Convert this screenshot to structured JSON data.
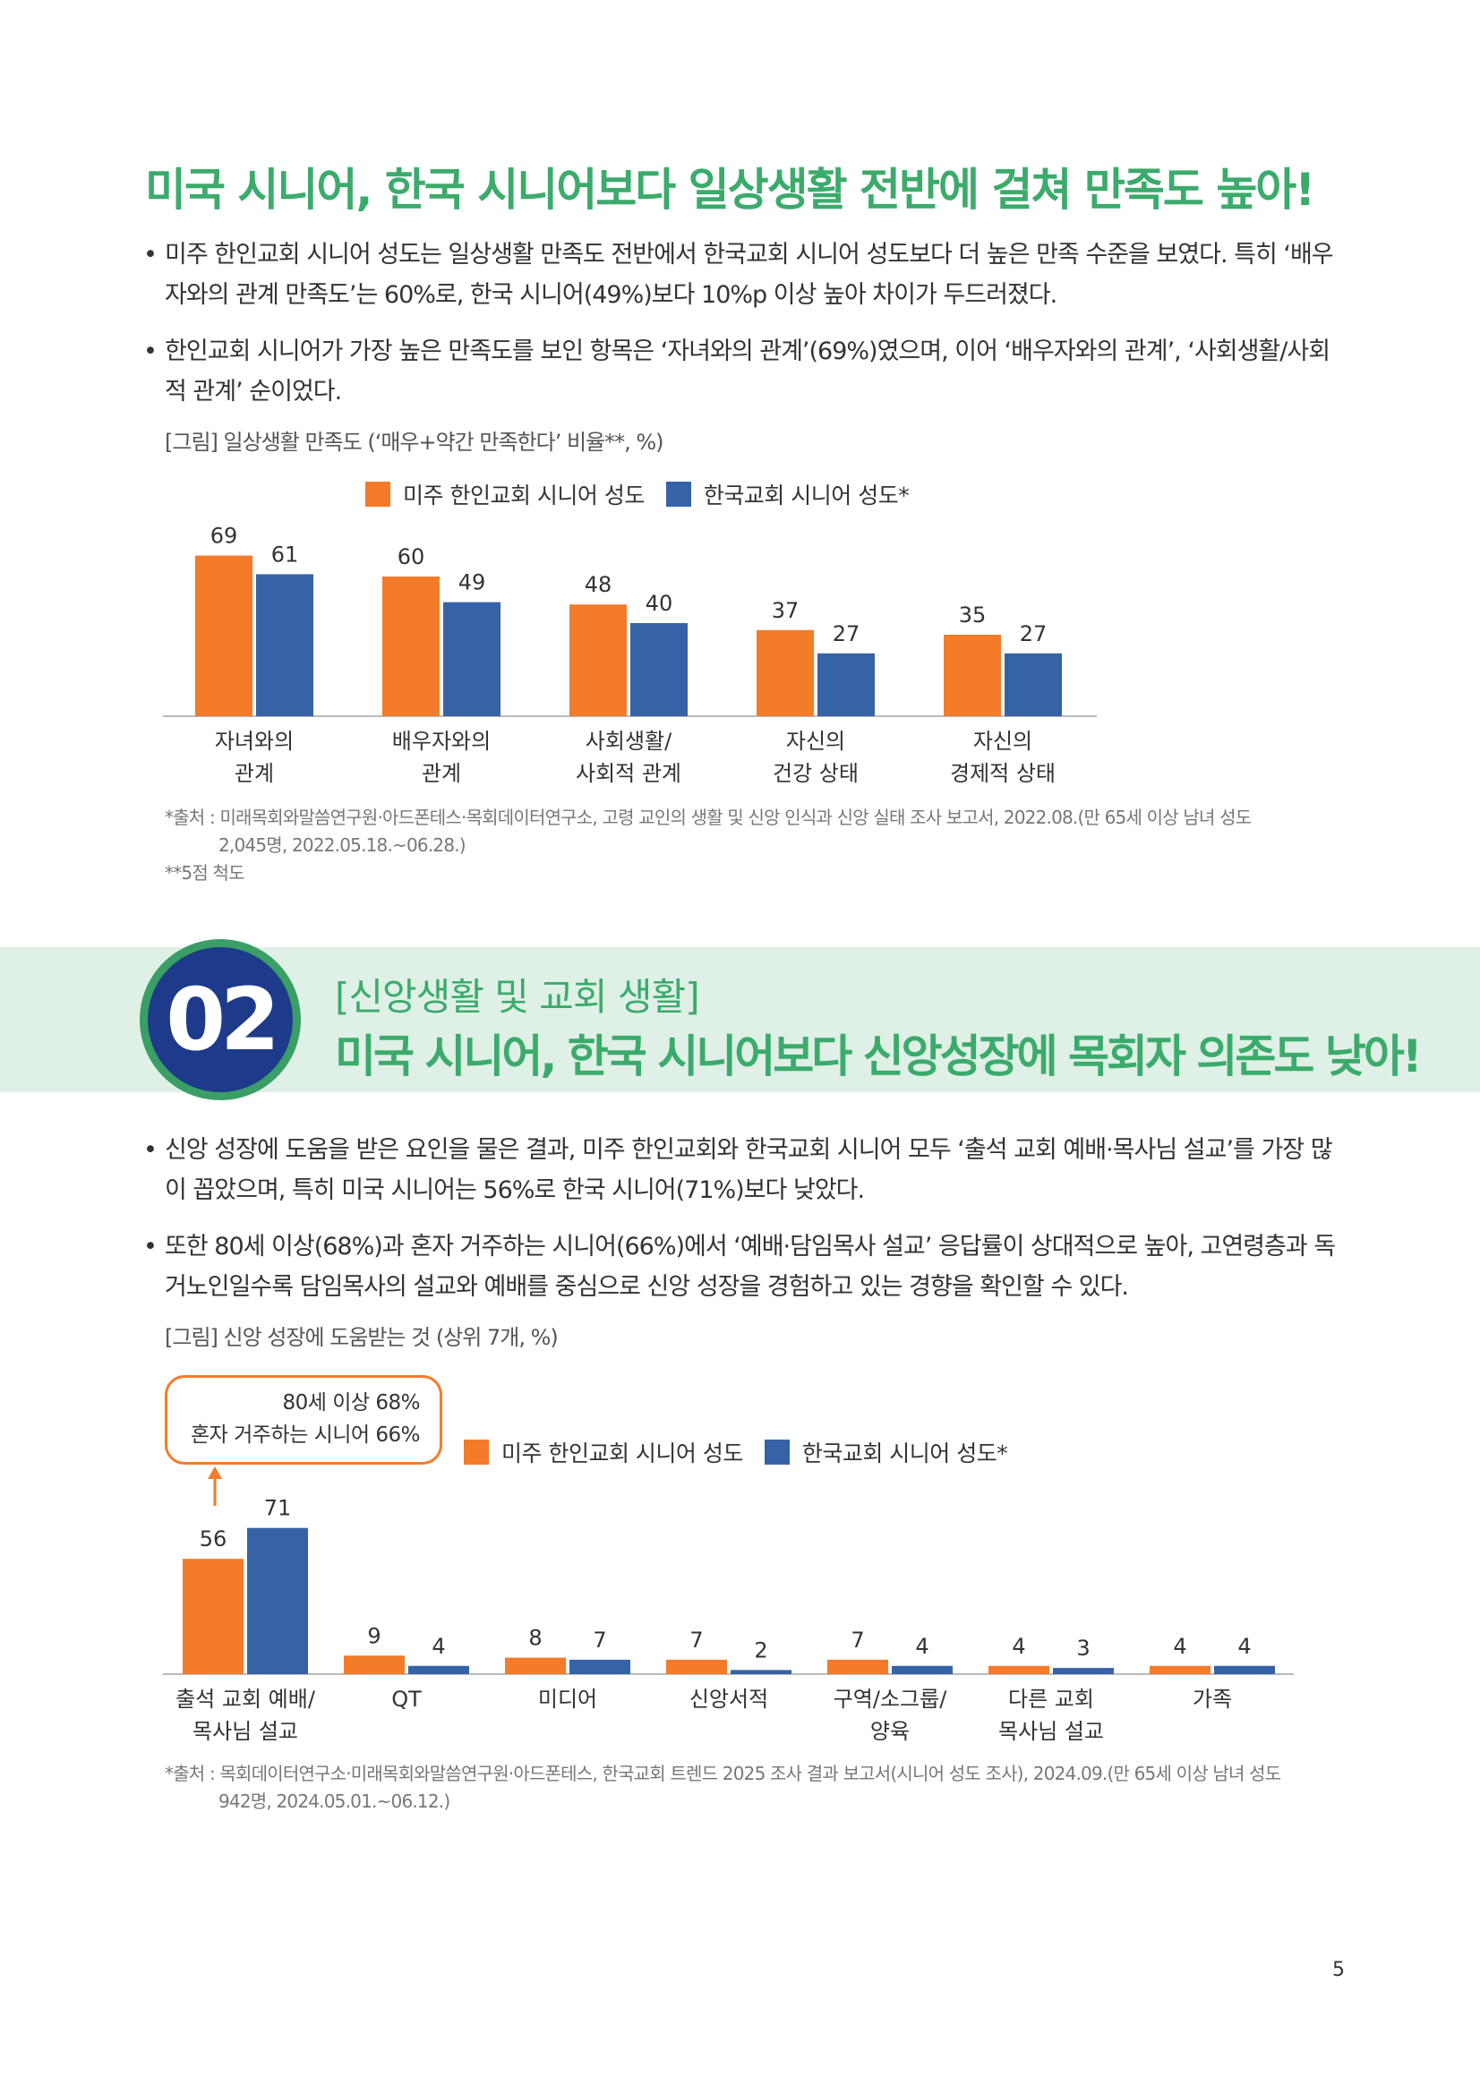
{
  "section1": {
    "headline": "미국 시니어, 한국 시니어보다 일상생활 전반에 걸쳐 만족도 높아!",
    "bullets": [
      "미주 한인교회 시니어 성도는 일상생활 만족도 전반에서 한국교회 시니어 성도보다 더 높은 만족 수준을 보였다. 특히 ‘배우자와의 관계 만족도’는 60%로, 한국 시니어(49%)보다 10%p 이상 높아 차이가 두드러졌다.",
      "한인교회 시니어가 가장 높은 만족도를 보인 항목은 ‘자녀와의 관계’(69%)였으며, 이어 ‘배우자와의 관계’, ‘사회생활/사회적 관계’ 순이었다."
    ],
    "figure_caption": "[그림] 일상생활 만족도 (‘매우+약간 만족한다’ 비율**, %)",
    "source_line1": "*출처 : 미래목회와말씀연구원·아드폰테스·목회데이터연구소, 고령 교인의 생활 및 신앙 인식과 신앙 실태 조사 보고서, 2022.08.(만 65세 이상 남녀 성도",
    "source_line2": "2,045명, 2022.05.18.~06.28.)",
    "note": "**5점 척도"
  },
  "section2": {
    "badge_number": "02",
    "subtitle": "[신앙생활 및 교회 생활]",
    "title": "미국 시니어, 한국 시니어보다 신앙성장에 목회자 의존도 낮아!",
    "bullets": [
      "신앙 성장에 도움을 받은 요인을 물은 결과, 미주 한인교회와 한국교회 시니어 모두 ‘출석 교회 예배·목사님 설교’를 가장 많이 꼽았으며, 특히 미국 시니어는 56%로 한국 시니어(71%)보다 낮았다.",
      "또한 80세 이상(68%)과 혼자 거주하는 시니어(66%)에서 ‘예배·담임목사 설교’ 응답률이 상대적으로 높아, 고연령층과 독거노인일수록 담임목사의 설교와 예배를 중심으로 신앙 성장을 경험하고 있는 경향을 확인할 수 있다."
    ],
    "figure_caption": "[그림] 신앙 성장에 도움받는 것 (상위 7개, %)",
    "callout_line1": "80세 이상 68%",
    "callout_line2": "혼자 거주하는 시니어 66%",
    "source_line1": "*출처 : 목회데이터연구소·미래목회와말씀연구원·아드폰테스, 한국교회 트렌드 2025 조사 결과 보고서(시니어 성도 조사), 2024.09.(만 65세 이상 남녀 성도",
    "source_line2": "942명, 2024.05.01.~06.12.)"
  },
  "legend": {
    "us_label": "미주 한인교회 시니어 성도",
    "kr_label": "한국교회 시니어 성도*"
  },
  "colors": {
    "us": "#f47b2a",
    "kr": "#3563a6",
    "green": "#3bab6b",
    "navy": "#1e3a8a"
  },
  "page_number": "5",
  "chart_data": [
    {
      "type": "bar",
      "title": "일상생활 만족도 (‘매우+약간 만족한다’ 비율**, %)",
      "categories": [
        [
          "자녀와의",
          "관계"
        ],
        [
          "배우자와의",
          "관계"
        ],
        [
          "사회생활/",
          "사회적 관계"
        ],
        [
          "자신의",
          "건강 상태"
        ],
        [
          "자신의",
          "경제적 상태"
        ]
      ],
      "series": [
        {
          "name": "미주 한인교회 시니어 성도",
          "values": [
            69,
            60,
            48,
            37,
            35
          ]
        },
        {
          "name": "한국교회 시니어 성도*",
          "values": [
            61,
            49,
            40,
            27,
            27
          ]
        }
      ],
      "ylim": [
        0,
        80
      ],
      "xlabel": "",
      "ylabel": ""
    },
    {
      "type": "bar",
      "title": "신앙 성장에 도움받는 것 (상위 7개, %)",
      "categories": [
        [
          "출석 교회 예배/",
          "목사님 설교"
        ],
        [
          "QT"
        ],
        [
          "미디어"
        ],
        [
          "신앙서적"
        ],
        [
          "구역/소그룹/",
          "양육"
        ],
        [
          "다른 교회",
          "목사님 설교"
        ],
        [
          "가족"
        ]
      ],
      "series": [
        {
          "name": "미주 한인교회 시니어 성도",
          "values": [
            56,
            9,
            8,
            7,
            7,
            4,
            4
          ]
        },
        {
          "name": "한국교회 시니어 성도*",
          "values": [
            71,
            4,
            7,
            2,
            4,
            3,
            4
          ]
        }
      ],
      "ylim": [
        0,
        80
      ],
      "xlabel": "",
      "ylabel": ""
    }
  ]
}
